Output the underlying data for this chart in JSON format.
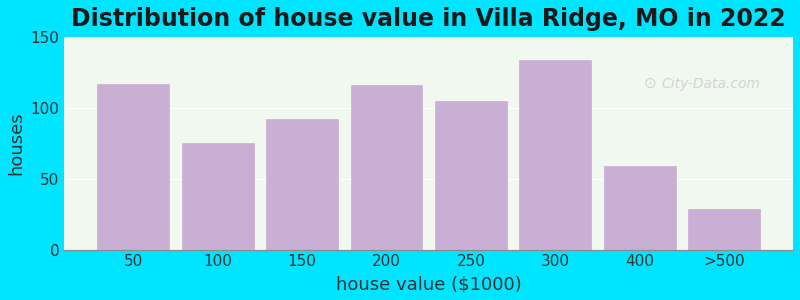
{
  "title": "Distribution of house value in Villa Ridge, MO in 2022",
  "xlabel": "house value ($1000)",
  "ylabel": "houses",
  "categories": [
    "50",
    "100",
    "150",
    "200",
    "250",
    "300",
    "400",
    ">500"
  ],
  "values": [
    117,
    75,
    92,
    116,
    105,
    134,
    59,
    29
  ],
  "bar_color": "#c9afd4",
  "bar_edge_color": "#c9afd4",
  "background_outer": "#00e5ff",
  "background_inner": "#f0f8f0",
  "ylim": [
    0,
    150
  ],
  "yticks": [
    0,
    50,
    100,
    150
  ],
  "title_fontsize": 17,
  "axis_label_fontsize": 13,
  "watermark_text": "City-Data.com"
}
